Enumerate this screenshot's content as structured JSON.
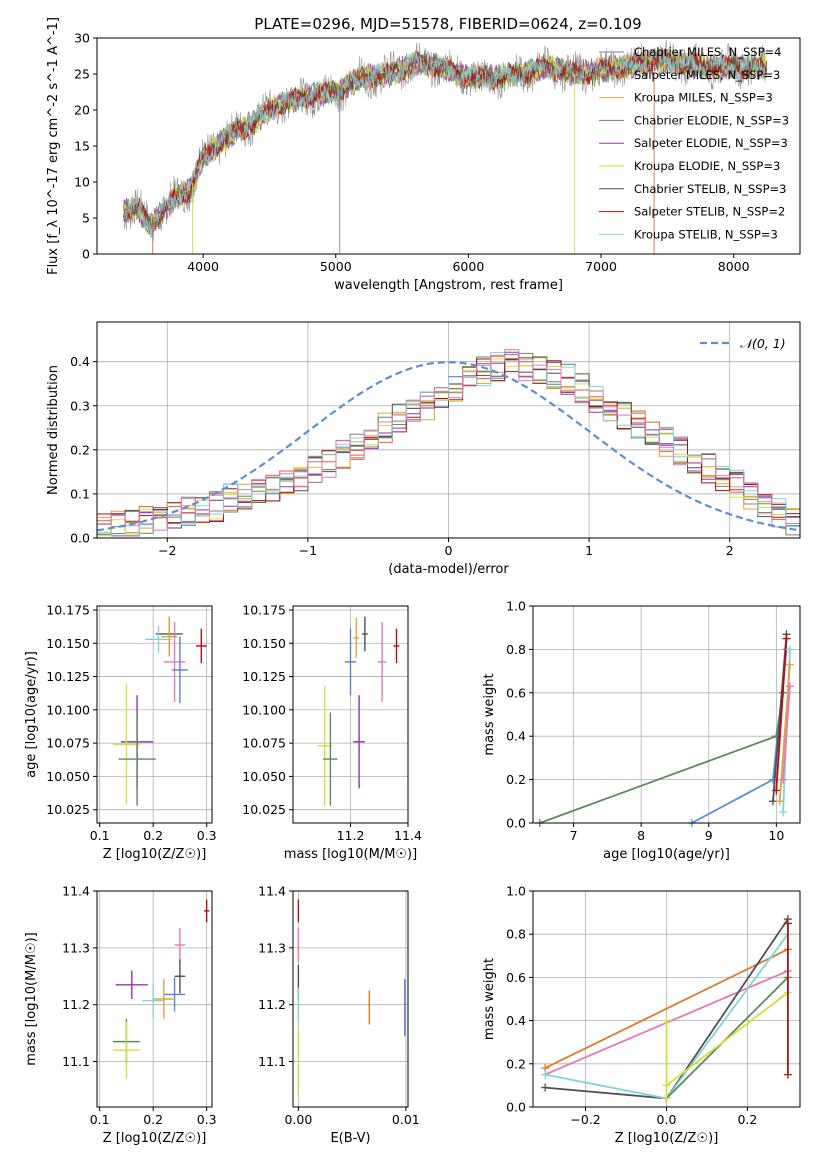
{
  "figure_title": "PLATE=0296, MJD=51578, FIBERID=0624, z=0.109",
  "colors": {
    "chabrier_miles": "#7f7f7f",
    "salpeter_miles": "#e06030",
    "kroupa_miles": "#e3a33a",
    "chabrier_elodie": "#5b8a5b",
    "salpeter_elodie": "#9b30b0",
    "kroupa_elodie": "#d4de3a",
    "chabrier_stelib": "#505050",
    "salpeter_stelib": "#b01010",
    "kroupa_stelib": "#7fd4dc",
    "normal_curve": "#5b8fd6",
    "extra_pink": "#e07ab8",
    "extra_blue": "#5b7fd6",
    "extra_orange": "#e07a2a"
  },
  "chart_data": [
    {
      "type": "line",
      "title": "PLATE=0296, MJD=51578, FIBERID=0624, z=0.109",
      "xlabel": "wavelength [Angstrom, rest frame]",
      "ylabel": "Flux [f_λ 10^-17 erg cm^-2 s^-1 A^-1]",
      "xlim": [
        3200,
        8500
      ],
      "ylim": [
        0,
        30
      ],
      "xticks": [
        "4000",
        "5000",
        "6000",
        "7000",
        "8000"
      ],
      "yticks": [
        "0",
        "5",
        "10",
        "15",
        "20",
        "25",
        "30"
      ],
      "legend_position": "right",
      "legend": [
        "Chabrier MILES, N_SSP=4",
        "Salpeter MILES, N_SSP=3",
        "Kroupa MILES, N_SSP=3",
        "Chabrier ELODIE, N_SSP=3",
        "Salpeter ELODIE, N_SSP=3",
        "Kroupa ELODIE, N_SSP=3",
        "Chabrier STELIB, N_SSP=3",
        "Salpeter STELIB, N_SSP=2",
        "Kroupa STELIB, N_SSP=3"
      ],
      "spectrum_envelope": {
        "x": [
          3400,
          3500,
          3600,
          3700,
          3800,
          3900,
          4000,
          4100,
          4200,
          4300,
          4400,
          4500,
          4600,
          4800,
          5000,
          5200,
          5400,
          5600,
          5800,
          6000,
          6200,
          6400,
          6600,
          6800,
          7000,
          7200,
          7400,
          7600,
          7800,
          8000,
          8200
        ],
        "y": [
          6,
          6.5,
          4,
          6,
          8,
          9,
          13.5,
          15,
          16.5,
          17.5,
          18.5,
          20,
          21,
          22,
          22.5,
          24.5,
          25,
          26.5,
          26,
          24.5,
          24.5,
          25,
          26,
          25,
          25.5,
          26,
          27,
          26.5,
          26,
          26,
          26
        ]
      }
    },
    {
      "type": "bar",
      "xlabel": "(data-model)/error",
      "ylabel": "Normed distribution",
      "xlim": [
        -2.5,
        2.5
      ],
      "ylim": [
        0,
        0.49
      ],
      "xticks": [
        "−2",
        "−1",
        "0",
        "1",
        "2"
      ],
      "yticks": [
        "0.0",
        "0.1",
        "0.2",
        "0.3",
        "0.4"
      ],
      "legend": [
        "𝒩(0, 1)"
      ],
      "legend_position": "top-right",
      "grid": true,
      "histogram": {
        "bin_start": -2.5,
        "bin_width": 0.1,
        "values": [
          0.02,
          0.03,
          0.03,
          0.04,
          0.04,
          0.05,
          0.06,
          0.06,
          0.07,
          0.09,
          0.09,
          0.1,
          0.11,
          0.12,
          0.14,
          0.16,
          0.17,
          0.19,
          0.21,
          0.23,
          0.25,
          0.27,
          0.28,
          0.3,
          0.32,
          0.34,
          0.36,
          0.38,
          0.39,
          0.4,
          0.39,
          0.38,
          0.37,
          0.36,
          0.34,
          0.32,
          0.3,
          0.28,
          0.26,
          0.24,
          0.22,
          0.2,
          0.18,
          0.16,
          0.14,
          0.12,
          0.1,
          0.08,
          0.06,
          0.04
        ]
      }
    },
    {
      "type": "scatter",
      "xlabel": "Z [log10(Z/Z☉)]",
      "ylabel": "age [log10(age/yr)]",
      "xlim": [
        0.095,
        0.31
      ],
      "ylim": [
        10.015,
        10.178
      ],
      "xticks": [
        "0.1",
        "0.2",
        "0.3"
      ],
      "yticks": [
        "10.025",
        "10.050",
        "10.075",
        "10.100",
        "10.125",
        "10.150",
        "10.175"
      ],
      "grid": true,
      "points": [
        {
          "x": 0.23,
          "y": 10.157,
          "dx": 0.05,
          "dy": 0.013,
          "c": "chabrier_stelib"
        },
        {
          "x": 0.21,
          "y": 10.153,
          "dx": 0.05,
          "dy": 0.01,
          "c": "kroupa_stelib"
        },
        {
          "x": 0.23,
          "y": 10.155,
          "dx": 0.03,
          "dy": 0.015,
          "c": "kroupa_miles"
        },
        {
          "x": 0.29,
          "y": 10.148,
          "dx": 0.02,
          "dy": 0.013,
          "c": "salpeter_stelib"
        },
        {
          "x": 0.24,
          "y": 10.136,
          "dx": 0.04,
          "dy": 0.03,
          "c": "extra_pink"
        },
        {
          "x": 0.25,
          "y": 10.13,
          "dx": 0.03,
          "dy": 0.025,
          "c": "extra_blue"
        },
        {
          "x": 0.17,
          "y": 10.076,
          "dx": 0.06,
          "dy": 0.035,
          "c": "salpeter_elodie"
        },
        {
          "x": 0.15,
          "y": 10.074,
          "dx": 0.05,
          "dy": 0.045,
          "c": "kroupa_elodie"
        },
        {
          "x": 0.17,
          "y": 10.063,
          "dx": 0.07,
          "dy": 0.035,
          "c": "chabrier_elodie"
        }
      ]
    },
    {
      "type": "scatter",
      "xlabel": "mass [log10(M/M☉)]",
      "xlim": [
        11.0,
        11.4
      ],
      "ylim": [
        10.015,
        10.178
      ],
      "xticks": [
        "11.2",
        "11.4"
      ],
      "yticks": [
        "10.025",
        "10.050",
        "10.075",
        "10.100",
        "10.125",
        "10.150",
        "10.175"
      ],
      "grid": true,
      "points": [
        {
          "x": 11.25,
          "y": 10.157,
          "dx": 0.02,
          "dy": 0.013,
          "c": "chabrier_stelib"
        },
        {
          "x": 11.22,
          "y": 10.154,
          "dx": 0.02,
          "dy": 0.015,
          "c": "kroupa_miles"
        },
        {
          "x": 11.36,
          "y": 10.148,
          "dx": 0.02,
          "dy": 0.013,
          "c": "salpeter_stelib"
        },
        {
          "x": 11.31,
          "y": 10.136,
          "dx": 0.03,
          "dy": 0.03,
          "c": "extra_pink"
        },
        {
          "x": 11.2,
          "y": 10.136,
          "dx": 0.04,
          "dy": 0.025,
          "c": "extra_blue"
        },
        {
          "x": 11.23,
          "y": 10.076,
          "dx": 0.04,
          "dy": 0.035,
          "c": "salpeter_elodie"
        },
        {
          "x": 11.11,
          "y": 10.073,
          "dx": 0.05,
          "dy": 0.045,
          "c": "kroupa_elodie"
        },
        {
          "x": 11.13,
          "y": 10.063,
          "dx": 0.05,
          "dy": 0.035,
          "c": "chabrier_elodie"
        }
      ]
    },
    {
      "type": "line",
      "xlabel": "age [log10(age/yr)]",
      "ylabel": "mass weight",
      "xlim": [
        6.4,
        10.35
      ],
      "ylim": [
        0,
        1
      ],
      "xticks": [
        "7",
        "8",
        "9",
        "10"
      ],
      "yticks": [
        "0.0",
        "0.2",
        "0.4",
        "0.6",
        "0.8",
        "1.0"
      ],
      "grid": true,
      "series": [
        {
          "c": "chabrier_elodie",
          "x": [
            6.5,
            10.0,
            10.1
          ],
          "y": [
            0.0,
            0.4,
            0.6
          ]
        },
        {
          "c": "normal_curve",
          "x": [
            8.75,
            9.95,
            10.15
          ],
          "y": [
            0.0,
            0.2,
            0.8
          ]
        },
        {
          "c": "chabrier_stelib",
          "x": [
            9.95,
            10.15
          ],
          "y": [
            0.1,
            0.87
          ]
        },
        {
          "c": "salpeter_stelib",
          "x": [
            10.0,
            10.15
          ],
          "y": [
            0.15,
            0.85
          ]
        },
        {
          "c": "kroupa_stelib",
          "x": [
            10.1,
            10.2
          ],
          "y": [
            0.05,
            0.8
          ]
        },
        {
          "c": "kroupa_miles",
          "x": [
            10.05,
            10.2
          ],
          "y": [
            0.1,
            0.73
          ]
        },
        {
          "c": "extra_pink",
          "x": [
            10.1,
            10.2
          ],
          "y": [
            0.2,
            0.63
          ]
        }
      ]
    },
    {
      "type": "scatter",
      "xlabel": "Z [log10(Z/Z☉)]",
      "ylabel": "mass [log10(M/M☉)]",
      "xlim": [
        0.095,
        0.31
      ],
      "ylim": [
        11.02,
        11.4
      ],
      "xticks": [
        "0.1",
        "0.2",
        "0.3"
      ],
      "yticks": [
        "11.1",
        "11.2",
        "11.3",
        "11.4"
      ],
      "grid": true,
      "points": [
        {
          "x": 0.3,
          "y": 11.365,
          "dx": 0.01,
          "dy": 0.02,
          "c": "salpeter_stelib"
        },
        {
          "x": 0.25,
          "y": 11.305,
          "dx": 0.02,
          "dy": 0.03,
          "c": "extra_pink"
        },
        {
          "x": 0.25,
          "y": 11.25,
          "dx": 0.02,
          "dy": 0.03,
          "c": "chabrier_stelib"
        },
        {
          "x": 0.16,
          "y": 11.235,
          "dx": 0.06,
          "dy": 0.025,
          "c": "salpeter_elodie"
        },
        {
          "x": 0.24,
          "y": 11.218,
          "dx": 0.04,
          "dy": 0.03,
          "c": "extra_blue"
        },
        {
          "x": 0.22,
          "y": 11.21,
          "dx": 0.04,
          "dy": 0.035,
          "c": "kroupa_miles"
        },
        {
          "x": 0.2,
          "y": 11.207,
          "dx": 0.04,
          "dy": 0.03,
          "c": "kroupa_stelib"
        },
        {
          "x": 0.15,
          "y": 11.135,
          "dx": 0.05,
          "dy": 0.04,
          "c": "chabrier_elodie"
        },
        {
          "x": 0.15,
          "y": 11.12,
          "dx": 0.05,
          "dy": 0.05,
          "c": "kroupa_elodie"
        }
      ]
    },
    {
      "type": "scatter",
      "xlabel": "E(B-V)",
      "xlim": [
        -0.0005,
        0.0102
      ],
      "ylim": [
        11.02,
        11.4
      ],
      "xticks": [
        "0.00",
        "0.01"
      ],
      "yticks": [
        "11.1",
        "11.2",
        "11.3",
        "11.4"
      ],
      "grid": true,
      "points": [
        {
          "x": 0.0,
          "y": 11.365,
          "dx": 0.0,
          "dy": 0.02,
          "c": "salpeter_stelib"
        },
        {
          "x": 0.0,
          "y": 11.305,
          "dx": 0.0,
          "dy": 0.03,
          "c": "extra_pink"
        },
        {
          "x": 0.0,
          "y": 11.24,
          "dx": 0.0,
          "dy": 0.03,
          "c": "chabrier_stelib"
        },
        {
          "x": 0.0,
          "y": 11.2,
          "dx": 0.0,
          "dy": 0.03,
          "c": "kroupa_stelib"
        },
        {
          "x": 0.0,
          "y": 11.1,
          "dx": 0.0,
          "dy": 0.06,
          "c": "kroupa_elodie"
        },
        {
          "x": 0.0066,
          "y": 11.195,
          "dx": 0.0,
          "dy": 0.03,
          "c": "extra_orange"
        },
        {
          "x": 0.0099,
          "y": 11.195,
          "dx": 0.0,
          "dy": 0.05,
          "c": "extra_blue"
        }
      ]
    },
    {
      "type": "line",
      "xlabel": "Z [log10(Z/Z☉)]",
      "ylabel": "mass weight",
      "xlim": [
        -0.33,
        0.33
      ],
      "ylim": [
        0,
        1
      ],
      "xticks": [
        "−0.2",
        "0.0",
        "0.2"
      ],
      "yticks": [
        "0.0",
        "0.2",
        "0.4",
        "0.6",
        "0.8",
        "1.0"
      ],
      "grid": true,
      "series": [
        {
          "c": "extra_orange",
          "x": [
            -0.3,
            0.3
          ],
          "y": [
            0.18,
            0.73
          ]
        },
        {
          "c": "extra_pink",
          "x": [
            -0.3,
            0.3
          ],
          "y": [
            0.15,
            0.63
          ]
        },
        {
          "c": "chabrier_stelib",
          "x": [
            -0.3,
            0.0,
            0.3
          ],
          "y": [
            0.09,
            0.04,
            0.87
          ]
        },
        {
          "c": "kroupa_stelib",
          "x": [
            -0.3,
            0.0,
            0.3
          ],
          "y": [
            0.15,
            0.04,
            0.8
          ]
        },
        {
          "c": "chabrier_elodie",
          "x": [
            0.0,
            0.3
          ],
          "y": [
            0.04,
            0.6
          ]
        },
        {
          "c": "kroupa_elodie",
          "x": [
            0.0,
            0.3
          ],
          "y": [
            0.1,
            0.53
          ]
        },
        {
          "c": "salpeter_stelib",
          "x": [
            0.3,
            0.3
          ],
          "y": [
            0.15,
            0.85
          ]
        },
        {
          "c": "kroupa_elodie",
          "x": [
            0.0,
            0.0
          ],
          "y": [
            0.04,
            0.4
          ]
        }
      ]
    }
  ]
}
